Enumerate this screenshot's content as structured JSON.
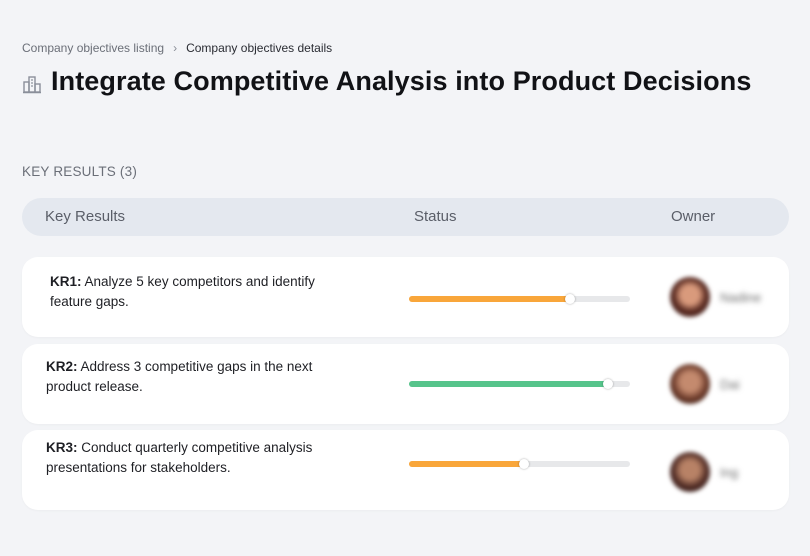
{
  "breadcrumb": {
    "parent": "Company objectives listing",
    "separator": "›",
    "current": "Company objectives details"
  },
  "page": {
    "title_icon": "building-icon",
    "title": "Integrate Competitive Analysis into Product Decisions"
  },
  "key_results_section": {
    "label": "KEY RESULTS (3)",
    "columns": {
      "key_results": "Key Results",
      "status": "Status",
      "owner": "Owner"
    }
  },
  "key_results": [
    {
      "code": "KR1:",
      "line1": " Analyze 5 key competitors and identify",
      "line2": "feature gaps.",
      "progress": 0.73,
      "progress_color": "#f9a63a",
      "owner_name": "Nadine"
    },
    {
      "code": "KR2:",
      "line1": " Address 3 competitive gaps in the next",
      "line2": "product release.",
      "progress": 0.9,
      "progress_color": "#56c48b",
      "owner_name": "Dai"
    },
    {
      "code": "KR3:",
      "line1": " Conduct quarterly competitive analysis",
      "line2": "presentations for stakeholders.",
      "progress": 0.52,
      "progress_color": "#f9a63a",
      "owner_name": "Ing"
    }
  ],
  "colors": {
    "background": "#f3f4f7",
    "header_bar": "#e4e8ef",
    "orange": "#f9a63a",
    "green": "#56c48b",
    "track": "#e7e8ea"
  }
}
